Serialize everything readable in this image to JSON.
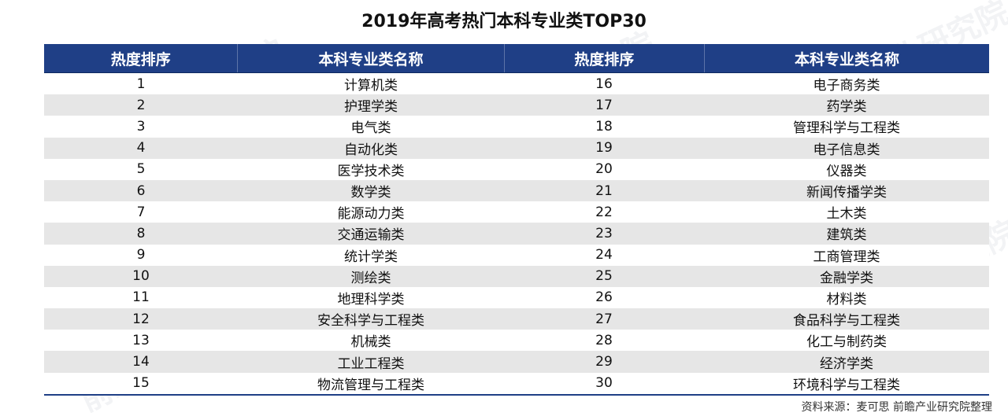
{
  "title": "2019年高考热门本科专业类TOP30",
  "headers": [
    "热度排序",
    "本科专业类名称",
    "热度排序",
    "本科专业类名称"
  ],
  "rows": [
    {
      "rank_a": "1",
      "name_a": "计算机类",
      "rank_b": "16",
      "name_b": "电子商务类"
    },
    {
      "rank_a": "2",
      "name_a": "护理学类",
      "rank_b": "17",
      "name_b": "药学类"
    },
    {
      "rank_a": "3",
      "name_a": "电气类",
      "rank_b": "18",
      "name_b": "管理科学与工程类"
    },
    {
      "rank_a": "4",
      "name_a": "自动化类",
      "rank_b": "19",
      "name_b": "电子信息类"
    },
    {
      "rank_a": "5",
      "name_a": "医学技术类",
      "rank_b": "20",
      "name_b": "仪器类"
    },
    {
      "rank_a": "6",
      "name_a": "数学类",
      "rank_b": "21",
      "name_b": "新闻传播学类"
    },
    {
      "rank_a": "7",
      "name_a": "能源动力类",
      "rank_b": "22",
      "name_b": "土木类"
    },
    {
      "rank_a": "8",
      "name_a": "交通运输类",
      "rank_b": "23",
      "name_b": "建筑类"
    },
    {
      "rank_a": "9",
      "name_a": "统计学类",
      "rank_b": "24",
      "name_b": "工商管理类"
    },
    {
      "rank_a": "10",
      "name_a": "测绘类",
      "rank_b": "25",
      "name_b": "金融学类"
    },
    {
      "rank_a": "11",
      "name_a": "地理科学类",
      "rank_b": "26",
      "name_b": "材料类"
    },
    {
      "rank_a": "12",
      "name_a": "安全科学与工程类",
      "rank_b": "27",
      "name_b": "食品科学与工程类"
    },
    {
      "rank_a": "13",
      "name_a": "机械类",
      "rank_b": "28",
      "name_b": "化工与制药类"
    },
    {
      "rank_a": "14",
      "name_a": "工业工程类",
      "rank_b": "29",
      "name_b": "经济学类"
    },
    {
      "rank_a": "15",
      "name_a": "物流管理与工程类",
      "rank_b": "30",
      "name_b": "环境科学与工程类"
    }
  ],
  "watermark": "前瞻产业研究院",
  "source": "资料来源：麦可思 前瞻产业研究院整理",
  "colors": {
    "header_bg": "#1f3f86",
    "stripe": "#e6e6e6"
  }
}
